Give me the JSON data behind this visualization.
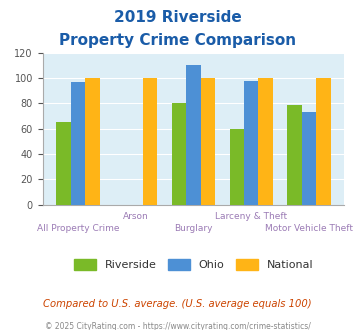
{
  "title_line1": "2019 Riverside",
  "title_line2": "Property Crime Comparison",
  "categories": [
    "All Property Crime",
    "Arson",
    "Burglary",
    "Larceny & Theft",
    "Motor Vehicle Theft"
  ],
  "label_top": [
    "",
    "Arson",
    "",
    "Larceny & Theft",
    ""
  ],
  "label_bottom": [
    "All Property Crime",
    "",
    "Burglary",
    "",
    "Motor Vehicle Theft"
  ],
  "riverside": [
    65,
    0,
    80,
    60,
    79
  ],
  "ohio": [
    97,
    0,
    110,
    98,
    73
  ],
  "national": [
    100,
    100,
    100,
    100,
    100
  ],
  "riverside_color": "#7aba28",
  "ohio_color": "#4d90d5",
  "national_color": "#ffb416",
  "bg_color": "#ddeef6",
  "title_color": "#1a5ca8",
  "xlabel_color": "#9b7bb5",
  "note_color": "#cc4400",
  "footnote_color": "#888888",
  "ylim": [
    0,
    120
  ],
  "yticks": [
    0,
    20,
    40,
    60,
    80,
    100,
    120
  ],
  "note_text": "Compared to U.S. average. (U.S. average equals 100)",
  "footnote_text": "© 2025 CityRating.com - https://www.cityrating.com/crime-statistics/",
  "legend_labels": [
    "Riverside",
    "Ohio",
    "National"
  ]
}
